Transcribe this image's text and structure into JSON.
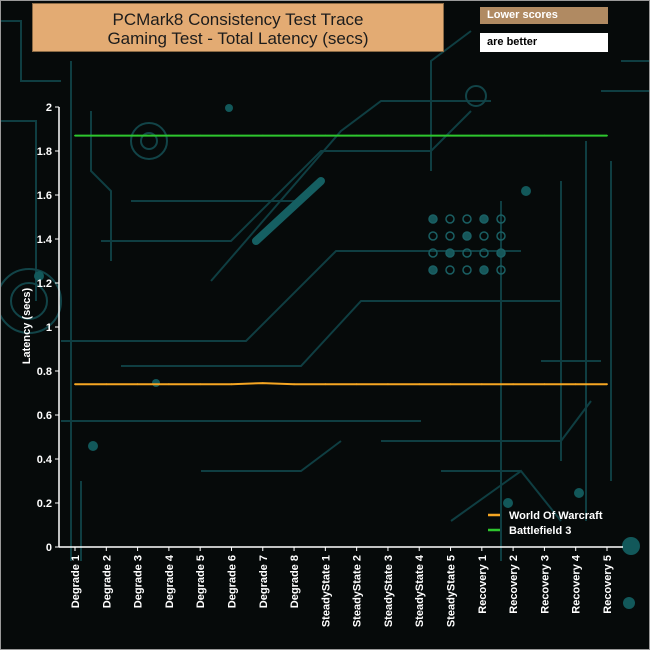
{
  "chart_data": {
    "type": "line",
    "title": "PCMark8 Consistency Test Trace",
    "subtitle": "Gaming Test -  Total Latency (secs)",
    "notes": [
      "Lower scores",
      "are better"
    ],
    "xlabel": "",
    "ylabel": "Latency (secs)",
    "ylim": [
      0,
      2
    ],
    "yticks": [
      "0",
      "0.2",
      "0.4",
      "0.6",
      "0.8",
      "1",
      "1.2",
      "1.4",
      "1.6",
      "1.8",
      "2"
    ],
    "grid": false,
    "legend_position": "bottom-right",
    "categories": [
      "Degrade 1",
      "Degrade 2",
      "Degrade 3",
      "Degrade 4",
      "Degrade 5",
      "Degrade 6",
      "Degrade 7",
      "Degrade 8",
      "SteadyState 1",
      "SteadyState 2",
      "SteadyState 3",
      "SteadyState 4",
      "SteadyState 5",
      "Recovery 1",
      "Recovery 2",
      "Recovery 3",
      "Recovery 4",
      "Recovery 5"
    ],
    "series": [
      {
        "name": "World Of Warcraft",
        "color": "#f5a623",
        "values": [
          0.74,
          0.74,
          0.74,
          0.74,
          0.74,
          0.74,
          0.745,
          0.74,
          0.74,
          0.74,
          0.74,
          0.74,
          0.74,
          0.74,
          0.74,
          0.74,
          0.74,
          0.74
        ]
      },
      {
        "name": "Battlefield 3",
        "color": "#2ec62e",
        "values": [
          1.87,
          1.87,
          1.87,
          1.87,
          1.87,
          1.87,
          1.87,
          1.87,
          1.87,
          1.87,
          1.87,
          1.87,
          1.87,
          1.87,
          1.87,
          1.87,
          1.87,
          1.87
        ]
      }
    ]
  }
}
